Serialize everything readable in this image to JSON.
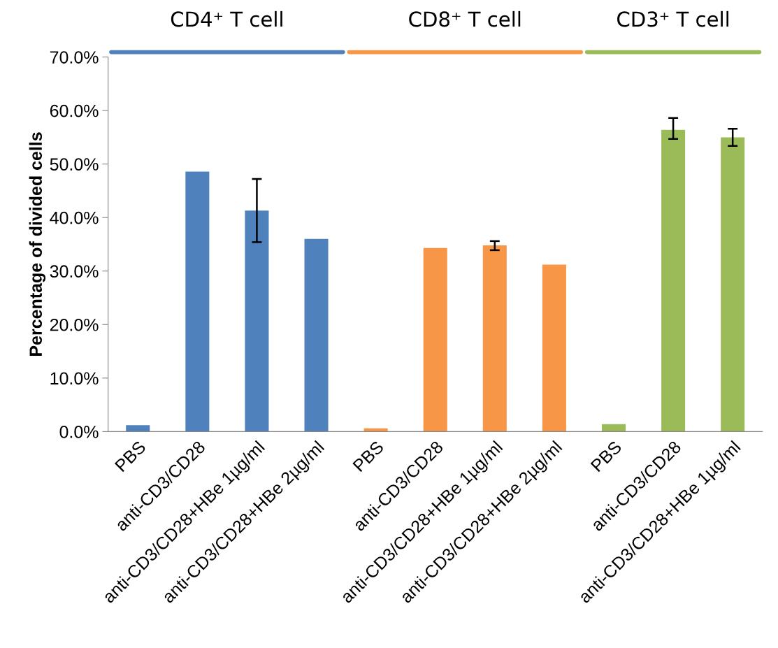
{
  "chart_data": {
    "type": "bar",
    "ylabel": "Percentage of divided cells",
    "categories": [
      "PBS",
      "anti-CD3/CD28",
      "anti-CD3/CD28+HBe 1µg/ml",
      "anti-CD3/CD28+HBe 2µg/ml",
      "PBS",
      "anti-CD3/CD28",
      "anti-CD3/CD28+HBe 1µg/ml",
      "anti-CD3/CD28+HBe 2µg/ml",
      "PBS",
      "anti-CD3/CD28",
      "anti-CD3/CD28+HBe 1µg/ml"
    ],
    "series": [
      {
        "color": "#4f81bd",
        "values": [
          1.2,
          48.6,
          41.3,
          36.0,
          null,
          null,
          null,
          null,
          null,
          null,
          null
        ],
        "errors": [
          null,
          null,
          [
            35.4,
            47.2
          ],
          null,
          null,
          null,
          null,
          null,
          null,
          null,
          null
        ]
      },
      {
        "color": "#f79646",
        "values": [
          null,
          null,
          null,
          null,
          0.6,
          34.3,
          34.8,
          31.2,
          null,
          null,
          null
        ],
        "errors": [
          null,
          null,
          null,
          null,
          null,
          null,
          [
            33.9,
            35.6
          ],
          null,
          null,
          null,
          null
        ]
      },
      {
        "color": "#9bbb59",
        "values": [
          null,
          null,
          null,
          null,
          null,
          null,
          null,
          null,
          1.4,
          56.4,
          55.0
        ],
        "errors": [
          null,
          null,
          null,
          null,
          null,
          null,
          null,
          null,
          null,
          [
            54.7,
            58.6
          ],
          [
            53.4,
            56.6
          ]
        ]
      }
    ],
    "ylim": [
      0,
      70
    ],
    "yticks": [
      {
        "value": 0,
        "label": "0.0%"
      },
      {
        "value": 10,
        "label": "10.0%"
      },
      {
        "value": 20,
        "label": "20.0%"
      },
      {
        "value": 30,
        "label": "30.0%"
      },
      {
        "value": 40,
        "label": "40.0%"
      },
      {
        "value": 50,
        "label": "50.0%"
      },
      {
        "value": 60,
        "label": "60.0%"
      },
      {
        "value": 70,
        "label": "70.0%"
      }
    ],
    "annotations": [
      "CD4⁺ T cell",
      "CD8⁺ T cell",
      "CD3⁺ T cell"
    ],
    "grid": false
  }
}
